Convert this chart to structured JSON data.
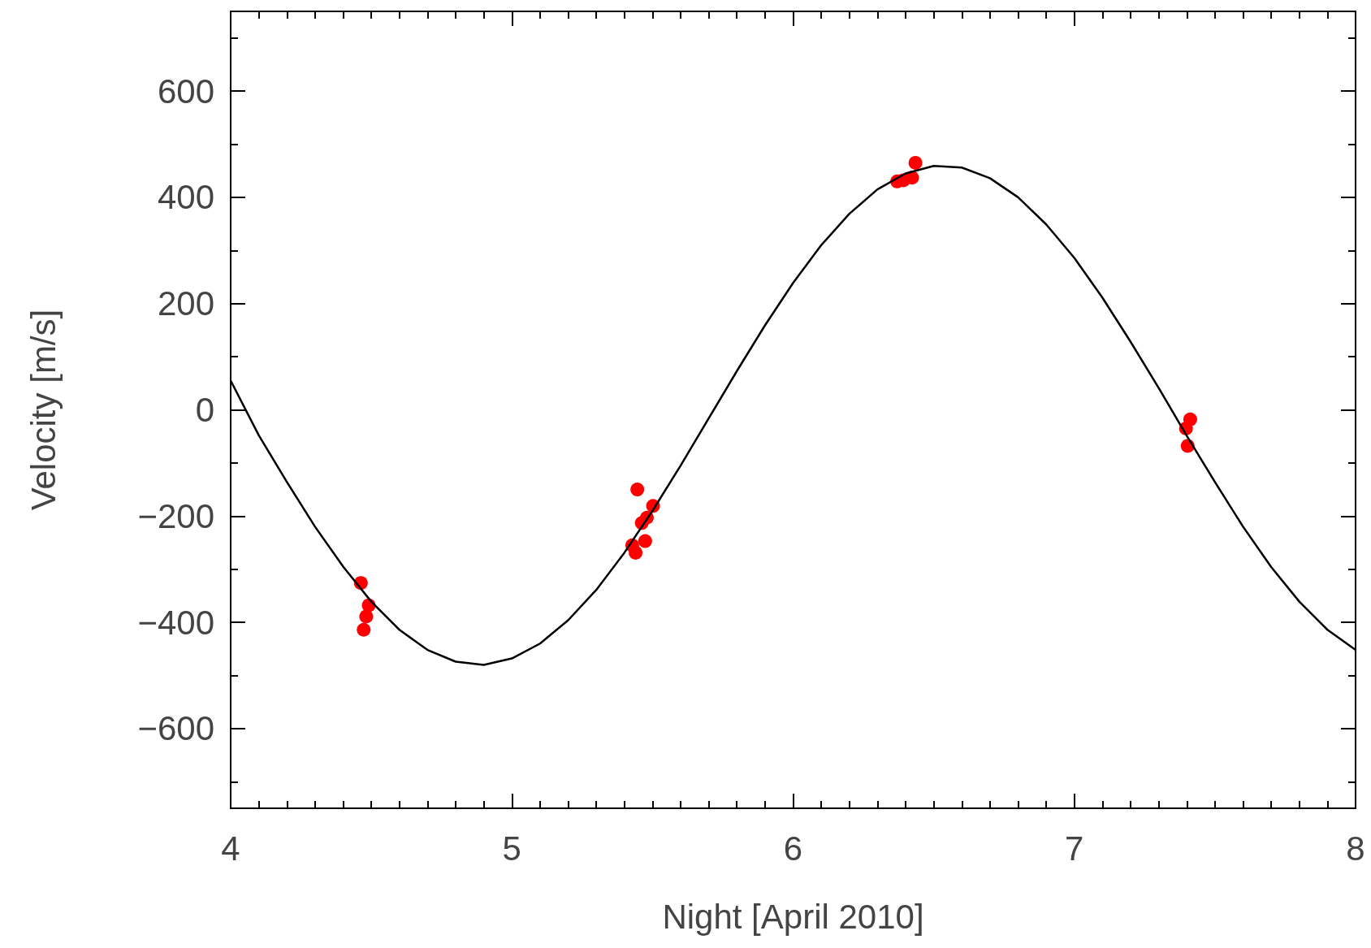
{
  "chart_data": {
    "type": "scatter",
    "xlabel": "Night [April 2010]",
    "ylabel": "Velocity [m/s]",
    "xlim": [
      4,
      8
    ],
    "xticks": [
      4,
      5,
      6,
      7,
      8
    ],
    "ylim": [
      -750,
      750
    ],
    "yticks": [
      -600,
      -400,
      -200,
      0,
      200,
      400,
      600
    ],
    "grid": false,
    "marker": "circle",
    "series": [
      {
        "type": "line",
        "color": "#000000",
        "line_style": "solid",
        "marker": "none",
        "x": [
          4.0,
          4.1,
          4.2,
          4.3,
          4.4,
          4.5,
          4.6,
          4.7,
          4.8,
          4.9,
          5.0,
          5.1,
          5.2,
          5.3,
          5.4,
          5.5,
          5.6,
          5.7,
          5.8,
          5.9,
          6.0,
          6.1,
          6.2,
          6.3,
          6.4,
          6.5,
          6.6,
          6.7,
          6.8,
          6.9,
          7.0,
          7.1,
          7.2,
          7.3,
          7.4,
          7.5,
          7.6,
          7.7,
          7.8,
          7.9,
          8.0
        ],
        "values": [
          55,
          -48,
          -136,
          -220,
          -295,
          -361,
          -414,
          -452,
          -474,
          -480,
          -468,
          -440,
          -396,
          -339,
          -269,
          -190,
          -105,
          -16,
          73,
          159,
          239,
          310,
          369,
          415,
          445,
          459,
          456,
          436,
          400,
          349,
          286,
          211,
          128,
          41,
          -49,
          -136,
          -220,
          -296,
          -361,
          -414,
          -452
        ]
      },
      {
        "color": "#ff0000",
        "x": [
          4.463,
          4.491,
          4.482,
          4.473,
          5.446,
          5.502,
          5.48,
          5.462,
          5.474,
          5.428,
          5.44,
          6.37,
          6.392,
          6.423,
          6.435,
          7.412,
          7.397,
          7.403
        ],
        "values": [
          -326,
          -368,
          -389,
          -414,
          -150,
          -181,
          -203,
          -213,
          -247,
          -255,
          -269,
          430,
          432,
          437,
          465,
          -18,
          -35,
          -68
        ]
      }
    ]
  }
}
